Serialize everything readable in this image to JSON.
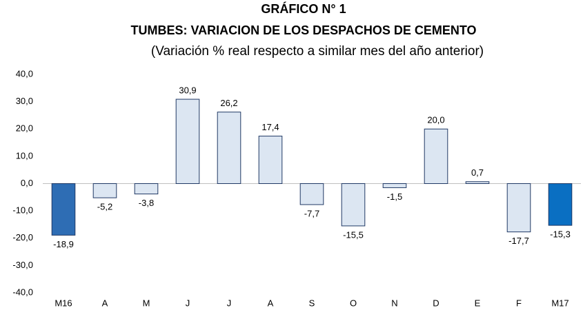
{
  "chart_data": {
    "type": "bar",
    "title": "GRÁFICO N° 1",
    "subtitle": "TUMBES: VARIACION DE LOS DESPACHOS DE CEMENTO",
    "note": "(Variación % real respecto a similar mes del año anterior)",
    "categories": [
      "M16",
      "A",
      "M",
      "J",
      "J",
      "A",
      "S",
      "O",
      "N",
      "D",
      "E",
      "F",
      "M17"
    ],
    "values": [
      -18.9,
      -5.2,
      -3.8,
      30.9,
      26.2,
      17.4,
      -7.7,
      -15.5,
      -1.5,
      20.0,
      0.7,
      -17.7,
      -15.3
    ],
    "value_labels": [
      "-18,9",
      "-5,2",
      "-3,8",
      "30,9",
      "26,2",
      "17,4",
      "-7,7",
      "-15,5",
      "-1,5",
      "20,0",
      "0,7",
      "-17,7",
      "-15,3"
    ],
    "colors": [
      "#2e6db4",
      "#dce6f2",
      "#dce6f2",
      "#dce6f2",
      "#dce6f2",
      "#dce6f2",
      "#dce6f2",
      "#dce6f2",
      "#dce6f2",
      "#dce6f2",
      "#dce6f2",
      "#dce6f2",
      "#0a6fc2"
    ],
    "ylim": [
      -40,
      40
    ],
    "yticks": [
      {
        "value": -40,
        "label": "-40,0"
      },
      {
        "value": -30,
        "label": "-30,0"
      },
      {
        "value": -20,
        "label": "-20,0"
      },
      {
        "value": -10,
        "label": "-10,0"
      },
      {
        "value": 0,
        "label": "0,0"
      },
      {
        "value": 10,
        "label": "10,0"
      },
      {
        "value": 20,
        "label": "20,0"
      },
      {
        "value": 30,
        "label": "30,0"
      },
      {
        "value": 40,
        "label": "40,0"
      }
    ],
    "grid": false
  }
}
